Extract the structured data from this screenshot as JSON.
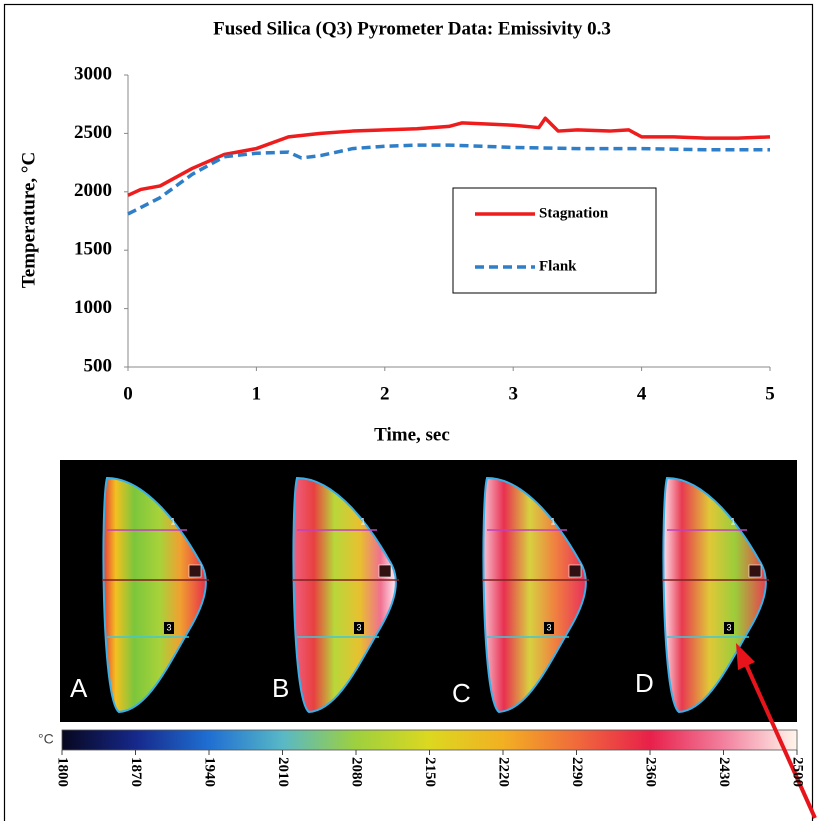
{
  "chart_data": {
    "type": "line",
    "title": "Fused Silica (Q3) Pyrometer Data:  Emissivity 0.3",
    "x_label": "Time, sec",
    "y_label": "Temperature, °C",
    "xlim": [
      0,
      5
    ],
    "xticks": [
      0,
      1,
      2,
      3,
      4,
      5
    ],
    "ylim": [
      500,
      3000
    ],
    "yticks": [
      500,
      1000,
      1500,
      2000,
      2500,
      3000
    ],
    "grid": false,
    "legend": "center-right",
    "series": [
      {
        "name": "Stagnation",
        "color": "#ee1c1c",
        "dash": false,
        "x": [
          0,
          0.1,
          0.25,
          0.5,
          0.75,
          1,
          1.25,
          1.5,
          1.75,
          2,
          2.25,
          2.5,
          2.6,
          3,
          3.2,
          3.25,
          3.35,
          3.5,
          3.75,
          3.9,
          4,
          4.25,
          4.5,
          4.75,
          5
        ],
        "values": [
          1970,
          2020,
          2050,
          2200,
          2320,
          2370,
          2470,
          2500,
          2520,
          2530,
          2540,
          2560,
          2590,
          2570,
          2550,
          2630,
          2520,
          2530,
          2520,
          2530,
          2470,
          2470,
          2460,
          2460,
          2470
        ]
      },
      {
        "name": "Flank",
        "color": "#2e7ec8",
        "dash": true,
        "x": [
          0,
          0.25,
          0.5,
          0.75,
          1,
          1.25,
          1.35,
          1.5,
          1.75,
          2,
          2.25,
          2.5,
          3,
          3.5,
          4,
          4.5,
          5
        ],
        "values": [
          1810,
          1950,
          2150,
          2300,
          2330,
          2340,
          2290,
          2310,
          2370,
          2390,
          2400,
          2400,
          2380,
          2370,
          2370,
          2360,
          2360
        ]
      }
    ]
  },
  "thermal_panel": {
    "images": [
      {
        "label": "A",
        "markers": [
          "1",
          "3"
        ]
      },
      {
        "label": "B",
        "markers": [
          "1",
          "3"
        ]
      },
      {
        "label": "C",
        "markers": [
          "1",
          "3"
        ]
      },
      {
        "label": "D",
        "markers": [
          "1",
          "3"
        ]
      }
    ]
  },
  "colorbar": {
    "unit": "°C",
    "lim": [
      1800,
      2500
    ],
    "ticks": [
      1800,
      1870,
      1940,
      2010,
      2080,
      2150,
      2220,
      2290,
      2360,
      2430,
      2500
    ]
  }
}
